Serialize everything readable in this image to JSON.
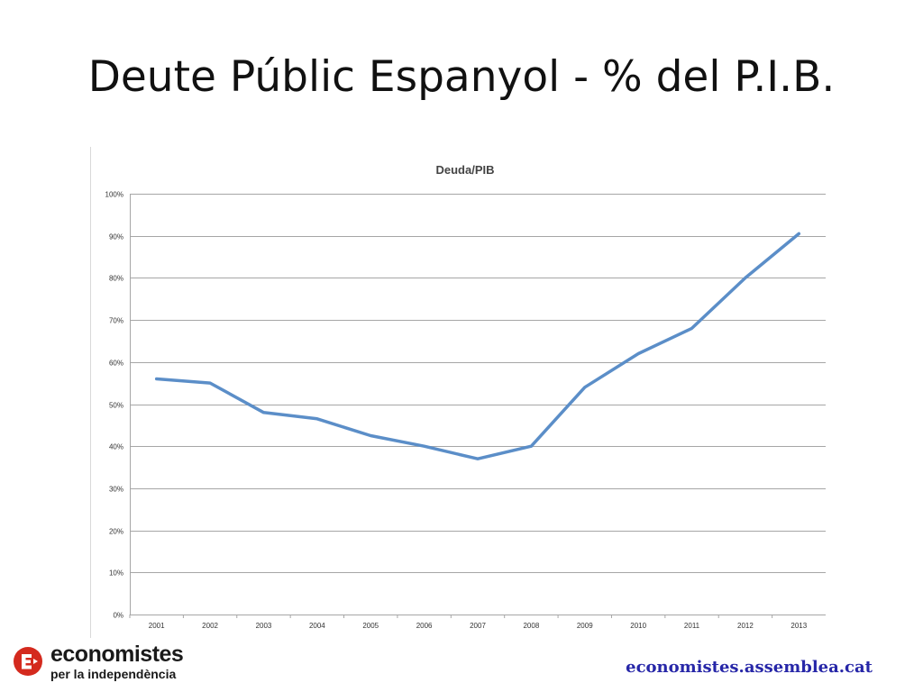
{
  "slide": {
    "title": "Deute Públic Espanyol - % del P.I.B."
  },
  "chart_data": {
    "type": "line",
    "title": "Deuda/PIB",
    "xlabel": "",
    "ylabel": "",
    "categories": [
      "2001",
      "2002",
      "2003",
      "2004",
      "2005",
      "2006",
      "2007",
      "2008",
      "2009",
      "2010",
      "2011",
      "2012",
      "2013"
    ],
    "series": [
      {
        "values": [
          56,
          55,
          48,
          46.5,
          42.5,
          40,
          37,
          40,
          54,
          62,
          68,
          80,
          90.5
        ],
        "color": "#5b8ec8"
      }
    ],
    "ylim": [
      0,
      100
    ],
    "yticks": [
      0,
      10,
      20,
      30,
      40,
      50,
      60,
      70,
      80,
      90,
      100
    ],
    "ytick_labels": [
      "0%",
      "10%",
      "20%",
      "30%",
      "40%",
      "50%",
      "60%",
      "70%",
      "80%",
      "90%",
      "100%"
    ],
    "grid": true,
    "legend": "none"
  },
  "footer": {
    "logo_line1": "economistes",
    "logo_line2": "per la independència",
    "url": "economistes.assemblea.cat"
  },
  "colors": {
    "line": "#5b8ec8",
    "grid": "#a6a6a6",
    "logo_red": "#d42a1e",
    "url": "#2727a8"
  }
}
